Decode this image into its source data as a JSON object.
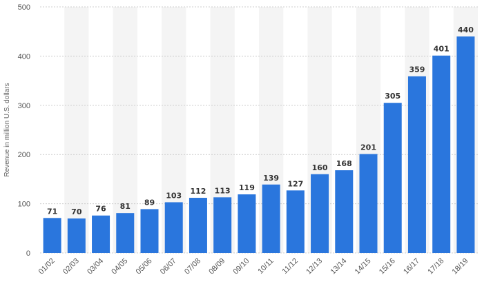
{
  "chart_data": {
    "type": "bar",
    "title": "",
    "xlabel": "",
    "ylabel": "Revenue in million U.S. dollars",
    "ylim": [
      0,
      500
    ],
    "yticks": [
      0,
      100,
      200,
      300,
      400,
      500
    ],
    "grid": true,
    "categories": [
      "01/02",
      "02/03",
      "03/04",
      "04/05",
      "05/06",
      "06/07",
      "07/08",
      "08/09",
      "09/10",
      "10/11",
      "11/12",
      "12/13",
      "13/14",
      "14/15",
      "15/16",
      "16/17",
      "17/18",
      "18/19"
    ],
    "values": [
      71,
      70,
      76,
      81,
      89,
      103,
      112,
      113,
      119,
      139,
      127,
      160,
      168,
      201,
      305,
      359,
      401,
      440
    ],
    "bar_color": "#2a76dd",
    "alt_band_color": "#f4f4f4",
    "grid_color": "#cccccc"
  }
}
